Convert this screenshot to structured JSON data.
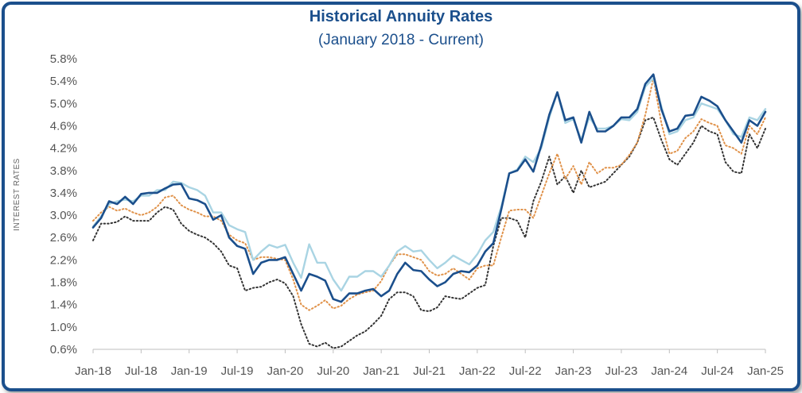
{
  "chart_data": {
    "type": "line",
    "title": "Historical Annuity Rates",
    "subtitle": "(January 2018 - Current)",
    "ylabel": "INTEREST RATES",
    "xlabel": "",
    "ylim": [
      0.6,
      5.8
    ],
    "yticks": [
      "0.6%",
      "1.0%",
      "1.4%",
      "1.8%",
      "2.2%",
      "2.6%",
      "3.0%",
      "3.4%",
      "3.8%",
      "4.2%",
      "4.6%",
      "5.0%",
      "5.4%",
      "5.8%"
    ],
    "ytick_values": [
      0.6,
      1.0,
      1.4,
      1.8,
      2.2,
      2.6,
      3.0,
      3.4,
      3.8,
      4.2,
      4.6,
      5.0,
      5.4,
      5.8
    ],
    "xticks": [
      "Jan-18",
      "Jul-18",
      "Jan-19",
      "Jul-19",
      "Jan-20",
      "Jul-20",
      "Jan-21",
      "Jul-21",
      "Jan-22",
      "Jul-22",
      "Jan-23",
      "Jul-23",
      "Jan-24",
      "Jul-24",
      "Jan-25"
    ],
    "x_start": "Jan-18",
    "grid": false,
    "legend": "none",
    "series": [
      {
        "name": "Series 1 (dark blue)",
        "color": "#1b4f8c",
        "style": "solid",
        "values": [
          2.78,
          2.95,
          3.25,
          3.2,
          3.33,
          3.2,
          3.38,
          3.4,
          3.4,
          3.48,
          3.55,
          3.56,
          3.3,
          3.27,
          3.2,
          2.92,
          3.0,
          2.6,
          2.45,
          2.4,
          1.95,
          2.15,
          2.2,
          2.2,
          2.25,
          1.95,
          1.65,
          1.95,
          1.9,
          1.83,
          1.5,
          1.45,
          1.6,
          1.6,
          1.65,
          1.68,
          1.55,
          1.65,
          1.95,
          2.15,
          2.02,
          2.0,
          1.85,
          1.73,
          1.8,
          1.95,
          2.0,
          1.98,
          2.1,
          2.35,
          2.5,
          3.1,
          3.75,
          3.8,
          4.0,
          3.78,
          4.25,
          4.8,
          5.2,
          4.7,
          4.75,
          4.3,
          4.85,
          4.5,
          4.5,
          4.6,
          4.75,
          4.75,
          4.9,
          5.35,
          5.52,
          4.9,
          4.5,
          4.55,
          4.78,
          4.8,
          5.12,
          5.05,
          4.95,
          4.7,
          4.5,
          4.3,
          4.7,
          4.6,
          4.85
        ]
      },
      {
        "name": "Series 2 (light blue)",
        "color": "#a9d4e3",
        "style": "solid",
        "values": [
          2.8,
          2.98,
          3.2,
          3.25,
          3.28,
          3.25,
          3.35,
          3.35,
          3.45,
          3.45,
          3.6,
          3.58,
          3.5,
          3.45,
          3.35,
          3.05,
          3.05,
          2.82,
          2.75,
          2.7,
          2.2,
          2.35,
          2.47,
          2.42,
          2.47,
          2.15,
          1.88,
          2.48,
          2.15,
          2.15,
          1.85,
          1.65,
          1.9,
          1.9,
          2.0,
          2.0,
          1.9,
          2.1,
          2.35,
          2.45,
          2.35,
          2.37,
          2.2,
          2.05,
          2.15,
          2.28,
          2.2,
          2.12,
          2.3,
          2.55,
          2.7,
          3.15,
          3.75,
          3.82,
          4.05,
          3.95,
          4.2,
          4.75,
          5.2,
          4.65,
          4.72,
          4.35,
          4.75,
          4.55,
          4.55,
          4.6,
          4.72,
          4.7,
          4.85,
          5.3,
          5.45,
          4.95,
          4.45,
          4.5,
          4.7,
          4.75,
          5.0,
          4.95,
          4.9,
          4.7,
          4.45,
          4.4,
          4.75,
          4.7,
          4.9
        ]
      },
      {
        "name": "Series 3 (orange dotted)",
        "color": "#e0924a",
        "style": "dotted",
        "values": [
          2.9,
          3.05,
          3.15,
          3.08,
          3.12,
          3.05,
          3.0,
          3.05,
          3.15,
          3.32,
          3.35,
          3.18,
          3.1,
          3.05,
          2.98,
          2.98,
          2.9,
          2.65,
          2.55,
          2.5,
          2.2,
          2.25,
          2.25,
          2.22,
          2.2,
          1.85,
          1.4,
          1.3,
          1.38,
          1.48,
          1.33,
          1.38,
          1.5,
          1.58,
          1.62,
          1.65,
          1.82,
          2.1,
          2.3,
          2.3,
          2.25,
          2.2,
          2.0,
          1.92,
          1.95,
          2.05,
          1.95,
          1.85,
          2.05,
          2.1,
          2.1,
          2.6,
          3.08,
          3.1,
          3.1,
          2.95,
          3.35,
          3.75,
          4.1,
          3.65,
          3.88,
          3.55,
          3.95,
          3.75,
          3.85,
          3.85,
          3.9,
          4.08,
          4.3,
          4.8,
          5.45,
          4.65,
          4.1,
          4.15,
          4.38,
          4.5,
          4.72,
          4.65,
          4.6,
          4.25,
          4.2,
          4.1,
          4.6,
          4.45,
          4.75
        ]
      },
      {
        "name": "Series 4 (black dotted)",
        "color": "#333333",
        "style": "dotted",
        "values": [
          2.55,
          2.85,
          2.85,
          2.88,
          2.98,
          2.9,
          2.9,
          2.9,
          3.05,
          3.15,
          3.1,
          2.85,
          2.72,
          2.65,
          2.6,
          2.5,
          2.35,
          2.1,
          2.05,
          1.65,
          1.7,
          1.72,
          1.8,
          1.85,
          1.78,
          1.55,
          1.05,
          0.7,
          0.65,
          0.72,
          0.62,
          0.65,
          0.75,
          0.85,
          0.92,
          1.05,
          1.2,
          1.5,
          1.62,
          1.62,
          1.55,
          1.3,
          1.28,
          1.35,
          1.55,
          1.52,
          1.5,
          1.6,
          1.7,
          1.75,
          2.45,
          2.95,
          2.95,
          2.9,
          2.6,
          3.25,
          3.6,
          4.05,
          3.55,
          3.7,
          3.4,
          3.8,
          3.5,
          3.55,
          3.6,
          3.75,
          3.9,
          4.05,
          4.3,
          4.7,
          4.75,
          4.35,
          4.0,
          3.9,
          4.1,
          4.3,
          4.6,
          4.5,
          4.45,
          3.95,
          3.78,
          3.75,
          4.45,
          4.2,
          4.55
        ]
      }
    ]
  }
}
